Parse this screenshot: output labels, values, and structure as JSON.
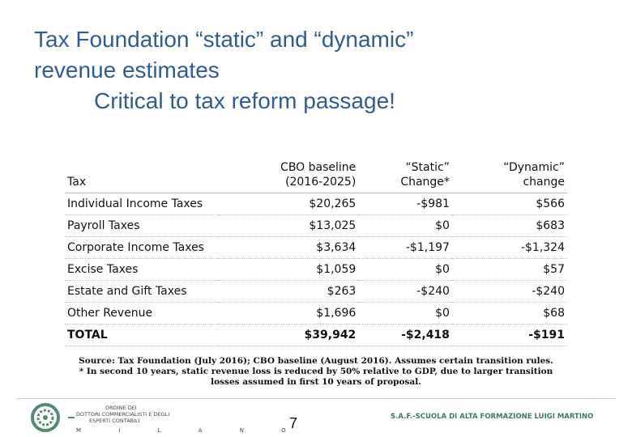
{
  "title": {
    "lines": [
      "Tax Foundation “static” and “dynamic”",
      "revenue estimates",
      "Critical to tax reform passage!"
    ]
  },
  "table": {
    "header": [
      "Tax",
      "CBO baseline\n(2016-2025)",
      "“Static”\nChange*",
      "“Dynamic”\nchange"
    ],
    "rows": [
      [
        "Individual Income Taxes",
        "$20,265",
        "-$981",
        "$566"
      ],
      [
        "Payroll Taxes",
        "$13,025",
        "$0",
        "$683"
      ],
      [
        "Corporate Income Taxes",
        "$3,634",
        "-$1,197",
        "-$1,324"
      ],
      [
        "Excise Taxes",
        "$1,059",
        "$0",
        "$57"
      ],
      [
        "Estate and Gift Taxes",
        "$263",
        "-$240",
        "-$240"
      ],
      [
        "Other Revenue",
        "$1,696",
        "$0",
        "$68"
      ],
      [
        "TOTAL",
        "$39,942",
        "-$2,418",
        "-$191"
      ]
    ]
  },
  "notes": [
    "Source:  Tax Foundation (July 2016); CBO baseline (August 2016).  Assumes certain transition rules.",
    "* In second 10 years, static revenue loss is reduced by 50% relative to GDP, due to larger transition",
    "losses assumed in first 10 years of proposal."
  ],
  "footer": {
    "logo_lines": [
      "ORDINE DEI",
      "DOTTORI COMMERCIALISTI E DEGLI",
      "ESPERTI CONTABILI",
      "M I L A N O"
    ],
    "page_number": "7",
    "organization": "S.A.F.-SCUOLA DI ALTA FORMAZIONE LUIGI MARTINO"
  }
}
